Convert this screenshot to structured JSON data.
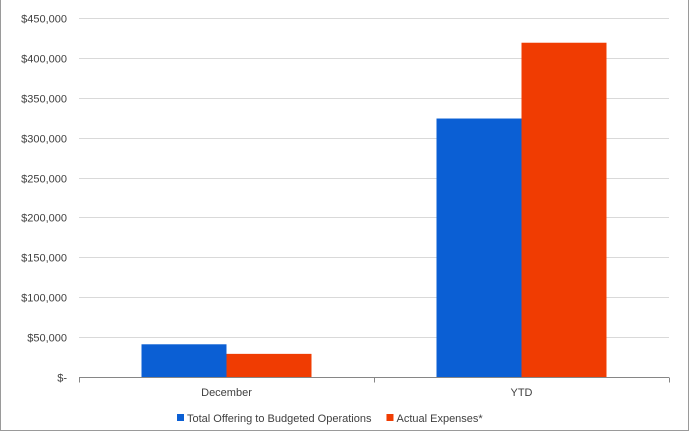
{
  "chart_data": {
    "type": "bar",
    "title": "",
    "xlabel": "",
    "ylabel": "",
    "categories": [
      "December",
      "YTD"
    ],
    "series": [
      {
        "name": "Total Offering to Budgeted Operations",
        "color": "#0b5fd4",
        "values": [
          41000,
          324000
        ]
      },
      {
        "name": "Actual Expenses*",
        "color": "#f03c02",
        "values": [
          29000,
          419000
        ]
      }
    ],
    "ylim": [
      0,
      450000
    ],
    "y_ticks": [
      0,
      50000,
      100000,
      150000,
      200000,
      250000,
      300000,
      350000,
      400000,
      450000
    ],
    "y_tick_labels": [
      "$-",
      "$50,000",
      "$100,000",
      "$150,000",
      "$200,000",
      "$250,000",
      "$300,000",
      "$350,000",
      "$400,000",
      "$450,000"
    ],
    "grid": true,
    "legend_position": "bottom",
    "gridline_color": "#d9d9d9",
    "axis_color": "#868686"
  }
}
